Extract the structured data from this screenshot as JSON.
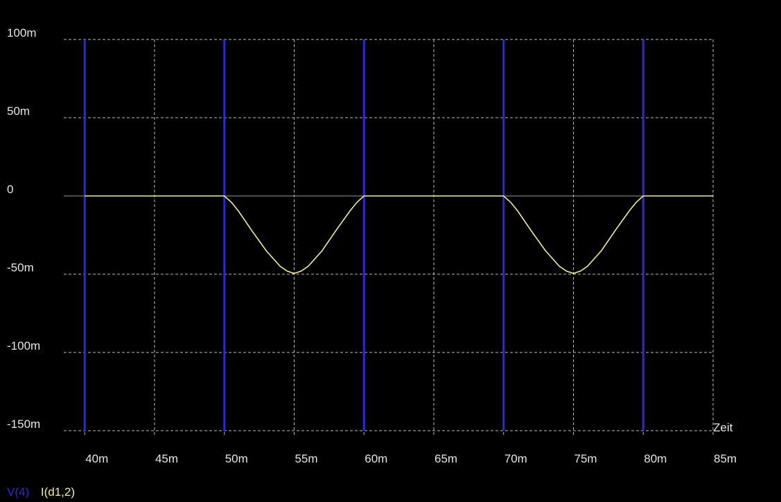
{
  "chart_data": {
    "type": "line",
    "xlabel": "Zeit",
    "ylabel": "",
    "xlim": [
      0.0385,
      0.085
    ],
    "ylim": [
      -0.15,
      0.1
    ],
    "grid": true,
    "x_ticks": [
      {
        "value": 0.04,
        "label": "40m"
      },
      {
        "value": 0.045,
        "label": "45m"
      },
      {
        "value": 0.05,
        "label": "50m"
      },
      {
        "value": 0.055,
        "label": "55m"
      },
      {
        "value": 0.06,
        "label": "60m"
      },
      {
        "value": 0.065,
        "label": "65m"
      },
      {
        "value": 0.07,
        "label": "70m"
      },
      {
        "value": 0.075,
        "label": "75m"
      },
      {
        "value": 0.08,
        "label": "80m"
      },
      {
        "value": 0.085,
        "label": "85m"
      }
    ],
    "y_ticks": [
      {
        "value": 0.1,
        "label": "100m"
      },
      {
        "value": 0.05,
        "label": "50m"
      },
      {
        "value": 0.0,
        "label": "0"
      },
      {
        "value": -0.05,
        "label": "-50m"
      },
      {
        "value": -0.1,
        "label": "-100m"
      },
      {
        "value": -0.15,
        "label": "-150m"
      }
    ],
    "series": [
      {
        "name": "V(4)",
        "color": "#2a2ad6",
        "style": "pulse-bars",
        "x": [
          0.04,
          0.05,
          0.06,
          0.07,
          0.08
        ],
        "y": [
          0.1,
          0.1,
          0.1,
          0.1,
          0.1
        ]
      },
      {
        "name": "I(d1,2)",
        "color": "#f5f08c",
        "x": [
          0.04,
          0.05,
          0.0505,
          0.051,
          0.052,
          0.053,
          0.054,
          0.0545,
          0.055,
          0.0555,
          0.056,
          0.057,
          0.058,
          0.059,
          0.0595,
          0.06,
          0.07,
          0.0705,
          0.071,
          0.072,
          0.073,
          0.074,
          0.0745,
          0.075,
          0.0755,
          0.076,
          0.077,
          0.078,
          0.079,
          0.0795,
          0.08,
          0.085
        ],
        "y": [
          0.0,
          0.0,
          -0.004,
          -0.0095,
          -0.0225,
          -0.035,
          -0.045,
          -0.048,
          -0.0495,
          -0.048,
          -0.045,
          -0.035,
          -0.022,
          -0.0095,
          -0.004,
          0.0,
          0.0,
          -0.004,
          -0.0095,
          -0.0225,
          -0.035,
          -0.045,
          -0.048,
          -0.0495,
          -0.048,
          -0.045,
          -0.035,
          -0.022,
          -0.0095,
          -0.004,
          0.0,
          0.0
        ]
      }
    ]
  }
}
